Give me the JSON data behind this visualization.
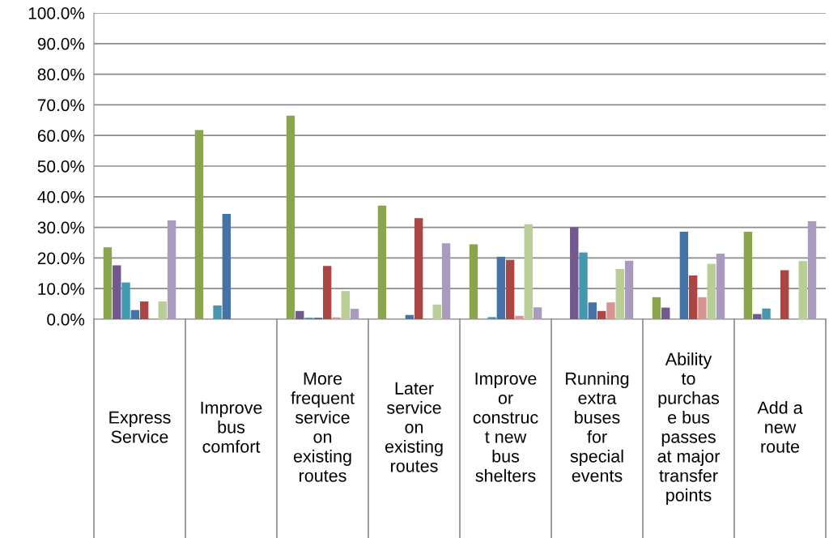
{
  "chart_data": {
    "type": "bar",
    "categories": [
      "Express\nService",
      "Improve\nbus\ncomfort",
      "More\nfrequent\nservice\non\nexisting\nroutes",
      "Later\nservice\non\nexisting\nroutes",
      "Improve\nor\nconstruc\nt new\nbus\nshelters",
      "Running\nextra\nbuses\nfor\nspecial\nevents",
      "Ability\nto\npurchas\ne bus\npasses\nat major\ntransfer\npoints",
      "Add a\nnew\nroute"
    ],
    "series": [
      {
        "color": "#8aa64c",
        "values": [
          23.5,
          61.8,
          66.5,
          37.1,
          24.5,
          0,
          7.2,
          28.6
        ]
      },
      {
        "color": "#71588f",
        "values": [
          17.6,
          0,
          2.7,
          0,
          0,
          30,
          3.8,
          1.7
        ]
      },
      {
        "color": "#4198af",
        "values": [
          12,
          4.5,
          0.5,
          0,
          0.7,
          21.8,
          0,
          3.5
        ]
      },
      {
        "color": "#4573a7",
        "values": [
          3,
          34.4,
          0.5,
          1.4,
          20.4,
          5.5,
          28.6,
          0
        ]
      },
      {
        "color": "#aa4644",
        "values": [
          5.8,
          0,
          17.4,
          33,
          19.4,
          2.7,
          14.3,
          16
        ]
      },
      {
        "color": "#d69593",
        "values": [
          0,
          0,
          0.6,
          0,
          1.1,
          5.5,
          7.2,
          0
        ]
      },
      {
        "color": "#b9cd96",
        "values": [
          5.8,
          0,
          9.2,
          4.8,
          31,
          16.4,
          18.1,
          19
        ]
      },
      {
        "color": "#a99bbd",
        "values": [
          32.3,
          0,
          3.4,
          24.8,
          3.9,
          19.1,
          21.4,
          32
        ]
      }
    ],
    "ylim": [
      0,
      100
    ],
    "yticks": [
      {
        "value": 0,
        "label": "0.0%"
      },
      {
        "value": 10,
        "label": "10.0%"
      },
      {
        "value": 20,
        "label": "20.0%"
      },
      {
        "value": 30,
        "label": "30.0%"
      },
      {
        "value": 40,
        "label": "40.0%"
      },
      {
        "value": 50,
        "label": "50.0%"
      },
      {
        "value": 60,
        "label": "60.0%"
      },
      {
        "value": 70,
        "label": "70.0%"
      },
      {
        "value": 80,
        "label": "80.0%"
      },
      {
        "value": 90,
        "label": "90.0%"
      },
      {
        "value": 100,
        "label": "100.0%"
      }
    ],
    "grid": "y",
    "legend": false
  }
}
